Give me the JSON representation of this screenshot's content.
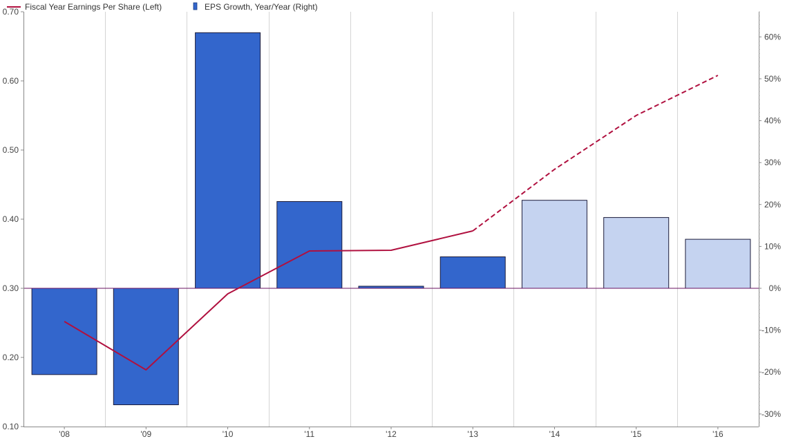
{
  "chart_data": {
    "type": "bar",
    "categories": [
      "'08",
      "'09",
      "'10",
      "'11",
      "'12",
      "'13",
      "'14",
      "'15",
      "'16"
    ],
    "series": [
      {
        "name": "Fiscal Year Earnings Per Share (Left)",
        "kind": "line",
        "axis": "left",
        "values": [
          0.252,
          0.182,
          0.292,
          0.354,
          0.355,
          0.383,
          0.472,
          0.55,
          0.608
        ],
        "projected_from_index": 5,
        "color": "#b0103f"
      },
      {
        "name": "EPS Growth, Year/Year (Right)",
        "kind": "bar",
        "axis": "right",
        "values": [
          -20.6,
          -27.8,
          61.0,
          20.7,
          0.5,
          7.5,
          21.0,
          16.9,
          11.7
        ],
        "projected_from_index": 6,
        "color": "#3366cc",
        "projected_color": "#c5d3f0"
      }
    ],
    "left_axis": {
      "ylim": [
        0.1,
        0.7
      ],
      "ticks": [
        "0.10",
        "0.20",
        "0.30",
        "0.40",
        "0.50",
        "0.60",
        "0.70"
      ]
    },
    "right_axis": {
      "ylim": [
        -33,
        66
      ],
      "ticks": [
        "60%",
        "50%",
        "40%",
        "30%",
        "20%",
        "10%",
        "0%",
        "-10%",
        "-20%",
        "-30%"
      ],
      "tick_values": [
        60,
        50,
        40,
        30,
        20,
        10,
        0,
        -10,
        -20,
        -30
      ]
    },
    "grid": "vertical",
    "legend_position": "top-left",
    "title": "",
    "xlabel": "",
    "ylabel": ""
  }
}
